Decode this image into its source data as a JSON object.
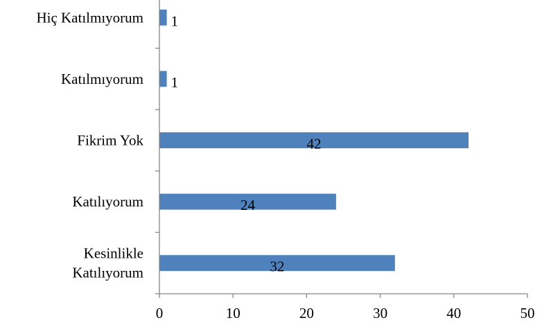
{
  "chart_data": {
    "type": "bar",
    "orientation": "horizontal",
    "categories": [
      [
        "Hiç Katılmıyorum"
      ],
      [
        "Katılmıyorum"
      ],
      [
        "Fikrim Yok"
      ],
      [
        "Katılıyorum"
      ],
      [
        "Kesinlikle",
        "Katılıyorum"
      ]
    ],
    "values": [
      1,
      1,
      42,
      24,
      32
    ],
    "data_labels": [
      "1",
      "1",
      "42",
      "24",
      "32"
    ],
    "xlim": [
      0,
      50
    ],
    "x_ticks": [
      0,
      10,
      20,
      30,
      40,
      50
    ],
    "x_tick_labels": [
      "0",
      "10",
      "20",
      "30",
      "40",
      "50"
    ],
    "title": "",
    "xlabel": "",
    "ylabel": "",
    "grid": false,
    "legend": "none",
    "bar_color": "#4f81bd"
  }
}
